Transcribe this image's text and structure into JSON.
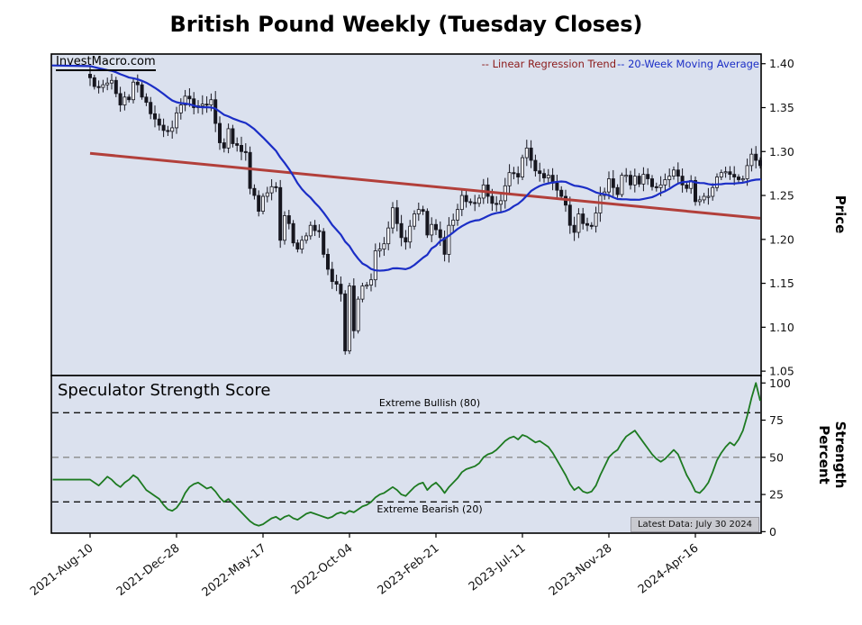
{
  "title": "British Pound Weekly (Tuesday Closes)",
  "branding": {
    "watermark": "InvestMacro.com"
  },
  "legend": {
    "regression_label": "-- Linear Regression Trend",
    "ma_label": "-- 20-Week Moving Average"
  },
  "colors": {
    "panel_bg": "#dbe1ee",
    "candle": "#16161f",
    "candle_up_fill": "#f2f3f7",
    "ma_line": "#1b2ec6",
    "regression_line": "#b23f3a",
    "legend_regression_text": "#8b1a1a",
    "legend_ma_text": "#1b2ec6",
    "strength_line": "#1d7a21",
    "threshold_dark": "#111111",
    "threshold_mid": "#8a8a8a",
    "badge_bg": "#c9cad0"
  },
  "chart_data": [
    {
      "type": "candlestick",
      "title": "British Pound Weekly (Tuesday Closes)",
      "ylabel": "Price",
      "ylim": [
        1.045,
        1.411
      ],
      "yticks": [
        1.4,
        1.35,
        1.3,
        1.25,
        1.2,
        1.15,
        1.1,
        1.05
      ],
      "grid": false,
      "x_ticks": [
        {
          "index": 0,
          "label": "2021-Aug-10"
        },
        {
          "index": 20,
          "label": "2021-Dec-28"
        },
        {
          "index": 40,
          "label": "2022-May-17"
        },
        {
          "index": 60,
          "label": "2022-Oct-04"
        },
        {
          "index": 80,
          "label": "2023-Feb-21"
        },
        {
          "index": 100,
          "label": "2023-Jul-11"
        },
        {
          "index": 120,
          "label": "2023-Nov-28"
        },
        {
          "index": 140,
          "label": "2024-Apr-16"
        }
      ],
      "weekly_closes": [
        1.384,
        1.374,
        1.373,
        1.376,
        1.378,
        1.381,
        1.366,
        1.353,
        1.362,
        1.359,
        1.379,
        1.376,
        1.362,
        1.356,
        1.343,
        1.337,
        1.33,
        1.324,
        1.323,
        1.327,
        1.344,
        1.353,
        1.363,
        1.36,
        1.35,
        1.352,
        1.354,
        1.353,
        1.359,
        1.332,
        1.31,
        1.304,
        1.326,
        1.309,
        1.307,
        1.3,
        1.299,
        1.258,
        1.25,
        1.232,
        1.249,
        1.253,
        1.26,
        1.259,
        1.199,
        1.227,
        1.218,
        1.196,
        1.189,
        1.199,
        1.204,
        1.216,
        1.21,
        1.209,
        1.183,
        1.166,
        1.152,
        1.149,
        1.138,
        1.073,
        1.147,
        1.096,
        1.132,
        1.147,
        1.148,
        1.154,
        1.187,
        1.189,
        1.195,
        1.213,
        1.236,
        1.218,
        1.202,
        1.197,
        1.215,
        1.229,
        1.234,
        1.232,
        1.205,
        1.217,
        1.211,
        1.202,
        1.183,
        1.216,
        1.222,
        1.234,
        1.25,
        1.243,
        1.242,
        1.241,
        1.247,
        1.262,
        1.249,
        1.241,
        1.24,
        1.244,
        1.261,
        1.276,
        1.275,
        1.271,
        1.293,
        1.304,
        1.29,
        1.278,
        1.275,
        1.27,
        1.273,
        1.264,
        1.256,
        1.249,
        1.239,
        1.216,
        1.208,
        1.229,
        1.218,
        1.216,
        1.215,
        1.23,
        1.25,
        1.254,
        1.269,
        1.259,
        1.251,
        1.273,
        1.273,
        1.262,
        1.272,
        1.263,
        1.274,
        1.269,
        1.26,
        1.259,
        1.262,
        1.268,
        1.272,
        1.279,
        1.272,
        1.262,
        1.258,
        1.267,
        1.243,
        1.245,
        1.249,
        1.249,
        1.259,
        1.271,
        1.276,
        1.277,
        1.274,
        1.271,
        1.268,
        1.269,
        1.284,
        1.297,
        1.29,
        1.284
      ],
      "overlays": [
        {
          "name": "20-Week Moving Average",
          "type": "sma",
          "window": 20,
          "lead_in_value": 1.398
        },
        {
          "name": "Linear Regression Trend",
          "type": "linear-regression",
          "start": 1.298,
          "end": 1.224
        }
      ]
    },
    {
      "type": "line",
      "title": "Speculator Strength Score",
      "ylabel": "Strength Percent",
      "ylim": [
        -1,
        105
      ],
      "yticks": [
        100,
        75,
        50,
        25,
        0
      ],
      "grid": false,
      "values": [
        35,
        33,
        31,
        34,
        37,
        35,
        32,
        30,
        33,
        35,
        38,
        36,
        32,
        28,
        26,
        24,
        22,
        18,
        15,
        14,
        16,
        20,
        26,
        30,
        32,
        33,
        31,
        29,
        30,
        27,
        23,
        20,
        22,
        19,
        16,
        13,
        10,
        7,
        5,
        4,
        5,
        7,
        9,
        10,
        8,
        10,
        11,
        9,
        8,
        10,
        12,
        13,
        12,
        11,
        10,
        9,
        10,
        12,
        13,
        12,
        14,
        13,
        15,
        17,
        18,
        20,
        23,
        25,
        26,
        28,
        30,
        28,
        25,
        24,
        27,
        30,
        32,
        33,
        28,
        31,
        33,
        30,
        26,
        30,
        33,
        36,
        40,
        42,
        43,
        44,
        46,
        50,
        52,
        53,
        55,
        58,
        61,
        63,
        64,
        62,
        65,
        64,
        62,
        60,
        61,
        59,
        57,
        53,
        48,
        43,
        38,
        32,
        28,
        30,
        27,
        26,
        27,
        31,
        38,
        44,
        50,
        53,
        55,
        60,
        64,
        66,
        68,
        64,
        60,
        56,
        52,
        49,
        47,
        49,
        52,
        55,
        52,
        45,
        38,
        33,
        27,
        26,
        29,
        33,
        40,
        48,
        53,
        57,
        60,
        58,
        62,
        68,
        78,
        90,
        100,
        88
      ],
      "thresholds": [
        {
          "value": 80,
          "label": "Extreme Bullish (80)",
          "style": "dashed-black"
        },
        {
          "value": 50,
          "label": "",
          "style": "dashed-gray"
        },
        {
          "value": 20,
          "label": "Extreme Bearish (20)",
          "style": "dashed-black"
        }
      ],
      "annotation": "Latest Data: July 30 2024"
    }
  ]
}
